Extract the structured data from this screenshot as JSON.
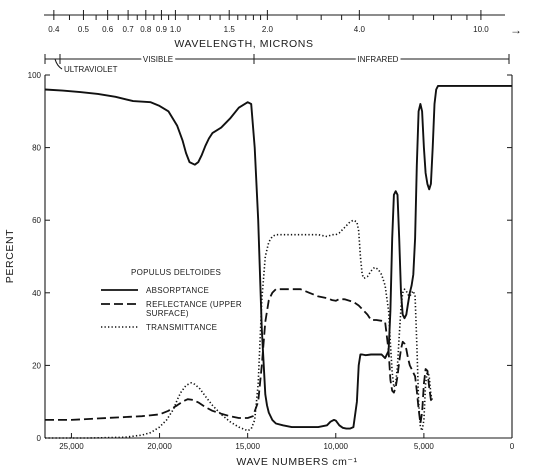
{
  "chart_data": {
    "type": "line",
    "legend_title": "POPULUS DELTOIDES",
    "xlabel": "WAVE NUMBERS cm⁻¹",
    "ylabel": "PERCENT",
    "top_axis_label": "WAVELENGTH, MICRONS",
    "top_ticks_labeled": [
      "0.4",
      "0.5",
      "0.6",
      "0.7",
      "0.8",
      "0.9",
      "1.0",
      "1.5",
      "2.0",
      "4.0",
      "10.0"
    ],
    "top_tick_values": [
      0.4,
      0.5,
      0.6,
      0.7,
      0.8,
      0.9,
      1.0,
      1.5,
      2.0,
      4.0,
      10.0
    ],
    "top_minor_values": [
      0.45,
      0.55,
      0.65,
      0.75,
      0.85,
      0.95,
      1.1,
      1.2,
      1.3,
      1.4,
      1.6,
      1.7,
      1.8,
      1.9,
      2.5,
      3.0,
      3.5,
      5.0,
      6.0,
      7.0,
      8.0,
      9.0
    ],
    "top_arrow": "→",
    "regions": [
      {
        "label": "ULTRAVIOLET",
        "from_um": 0.37,
        "to_um": 0.4
      },
      {
        "label": "VISIBLE",
        "from_um": 0.4,
        "to_um": 0.7
      },
      {
        "label": "INFRARED",
        "from_um": 0.7,
        "to_um": 10.0
      }
    ],
    "xlim": [
      26500,
      0
    ],
    "ylim": [
      0,
      100
    ],
    "x_tick_values": [
      25000,
      20000,
      15000,
      10000,
      5000,
      0
    ],
    "x_tick_labels": [
      "25,000",
      "20,000",
      "15,000",
      "10,000",
      "5,000",
      "0"
    ],
    "y_tick_values": [
      0,
      20,
      40,
      60,
      80,
      100
    ],
    "y_tick_labels": [
      "0",
      "20",
      "40",
      "60",
      "80",
      "100"
    ],
    "series": [
      {
        "name": "ABSORPTANCE",
        "style": "solid",
        "x": [
          26500,
          25500,
          24500,
          23500,
          22500,
          21500,
          20500,
          20000,
          19500,
          19000,
          18700,
          18500,
          18300,
          18000,
          17800,
          17600,
          17400,
          17200,
          17000,
          16500,
          16000,
          15500,
          15000,
          14800,
          14600,
          14400,
          14200,
          14000,
          13900,
          13800,
          13600,
          13400,
          13000,
          12500,
          12000,
          11500,
          11000,
          10500,
          10300,
          10100,
          10000,
          9800,
          9600,
          9400,
          9200,
          9000,
          8800,
          8700,
          8600,
          8500,
          8300,
          8000,
          7700,
          7400,
          7200,
          7000,
          6900,
          6800,
          6700,
          6600,
          6500,
          6400,
          6300,
          6200,
          6100,
          6000,
          5900,
          5800,
          5700,
          5600,
          5500,
          5400,
          5300,
          5200,
          5100,
          5000,
          4900,
          4800,
          4700,
          4600,
          4500,
          4400,
          4300,
          4200,
          4000,
          3800,
          3500,
          3000,
          2500,
          2000,
          1500,
          1000,
          500,
          0
        ],
        "y": [
          96,
          95.7,
          95.3,
          94.8,
          94,
          92.8,
          92.5,
          91.5,
          90,
          86,
          82,
          78.5,
          76,
          75.3,
          76,
          78,
          80.5,
          82.5,
          84,
          85.5,
          88,
          91,
          92.5,
          92,
          80,
          60,
          30,
          12,
          9,
          7,
          5,
          4,
          3.5,
          3,
          3,
          3,
          3,
          3.5,
          4.5,
          5,
          4.8,
          3.5,
          2.8,
          2.6,
          2.6,
          3,
          10,
          20,
          23,
          23,
          22.8,
          23,
          23,
          23,
          22,
          24,
          35,
          55,
          67,
          68,
          67,
          55,
          40,
          34,
          33,
          34,
          37,
          40,
          42,
          45,
          55,
          75,
          90,
          92,
          90,
          80,
          73,
          70,
          68.5,
          70,
          80,
          92,
          96,
          97,
          97,
          97,
          97,
          97,
          97,
          97,
          97,
          97,
          97,
          97
        ]
      },
      {
        "name": "REFLECTANCE (UPPER SURFACE)",
        "style": "dashed",
        "x": [
          26500,
          25000,
          23000,
          21000,
          20000,
          19500,
          19000,
          18700,
          18400,
          18100,
          17800,
          17400,
          17000,
          16500,
          16000,
          15500,
          15000,
          14700,
          14400,
          14200,
          14000,
          13800,
          13600,
          13400,
          13200,
          13000,
          12500,
          12000,
          11500,
          11000,
          10500,
          10200,
          10000,
          9800,
          9500,
          9000,
          8700,
          8500,
          8200,
          8000,
          7700,
          7400,
          7200,
          7000,
          6900,
          6800,
          6700,
          6600,
          6500,
          6400,
          6300,
          6200,
          6100,
          6000,
          5900,
          5800,
          5700,
          5600,
          5500,
          5400,
          5300,
          5200,
          5100,
          5000,
          4900,
          4800,
          4700,
          4600,
          4500
        ],
        "y": [
          5,
          5,
          5.5,
          6,
          6.5,
          7.5,
          9,
          10,
          10.7,
          10.5,
          9.8,
          8.5,
          7.5,
          6.7,
          6,
          5.5,
          5.5,
          6,
          10,
          20,
          32,
          38,
          40,
          41,
          41,
          41,
          41,
          41,
          40,
          39,
          38.5,
          38,
          37.8,
          38.3,
          38.2,
          37.5,
          36.5,
          35.5,
          34,
          32.5,
          32.5,
          32.3,
          32,
          24,
          16,
          13,
          12.5,
          14,
          17,
          21,
          24.5,
          26.5,
          26,
          24.5,
          22,
          20,
          19,
          18,
          17,
          13,
          8,
          4,
          7,
          15,
          19,
          18.5,
          14,
          10.5,
          10
        ]
      },
      {
        "name": "TRANSMITTANCE",
        "style": "dotted",
        "x": [
          26500,
          24000,
          22000,
          21000,
          20500,
          20000,
          19600,
          19200,
          19000,
          18800,
          18500,
          18200,
          18000,
          17700,
          17400,
          17000,
          16500,
          16000,
          15500,
          15000,
          14800,
          14600,
          14400,
          14200,
          14000,
          13800,
          13600,
          13400,
          13200,
          13000,
          12500,
          12000,
          11500,
          11000,
          10500,
          10200,
          10000,
          9800,
          9500,
          9200,
          9000,
          8800,
          8700,
          8600,
          8500,
          8400,
          8200,
          8000,
          7800,
          7600,
          7400,
          7200,
          7000,
          6900,
          6800,
          6700,
          6600,
          6500,
          6400,
          6300,
          6200,
          6100,
          6000,
          5900,
          5800,
          5700,
          5600,
          5500,
          5400,
          5300,
          5200,
          5100,
          5000,
          4900,
          4800,
          4700,
          4600,
          4500
        ],
        "y": [
          0,
          0,
          0.2,
          0.8,
          1.5,
          3,
          5,
          8,
          10.5,
          12.5,
          14.5,
          15.2,
          14.8,
          13.5,
          11.5,
          9,
          6.5,
          4.5,
          3,
          2,
          2.5,
          5,
          15,
          38,
          50,
          54,
          55.5,
          56,
          56,
          56,
          56,
          56,
          56,
          56,
          55.5,
          56,
          56,
          56.5,
          58,
          59.5,
          60,
          59.5,
          57,
          50,
          45,
          44,
          44.5,
          46,
          47,
          46.5,
          45,
          42,
          35,
          26,
          18,
          14,
          15,
          20,
          28,
          36,
          40,
          41,
          40.5,
          39.5,
          39,
          40,
          40.5,
          39,
          26,
          10,
          3,
          2,
          5,
          15,
          18.5,
          17,
          12,
          10
        ]
      }
    ]
  }
}
